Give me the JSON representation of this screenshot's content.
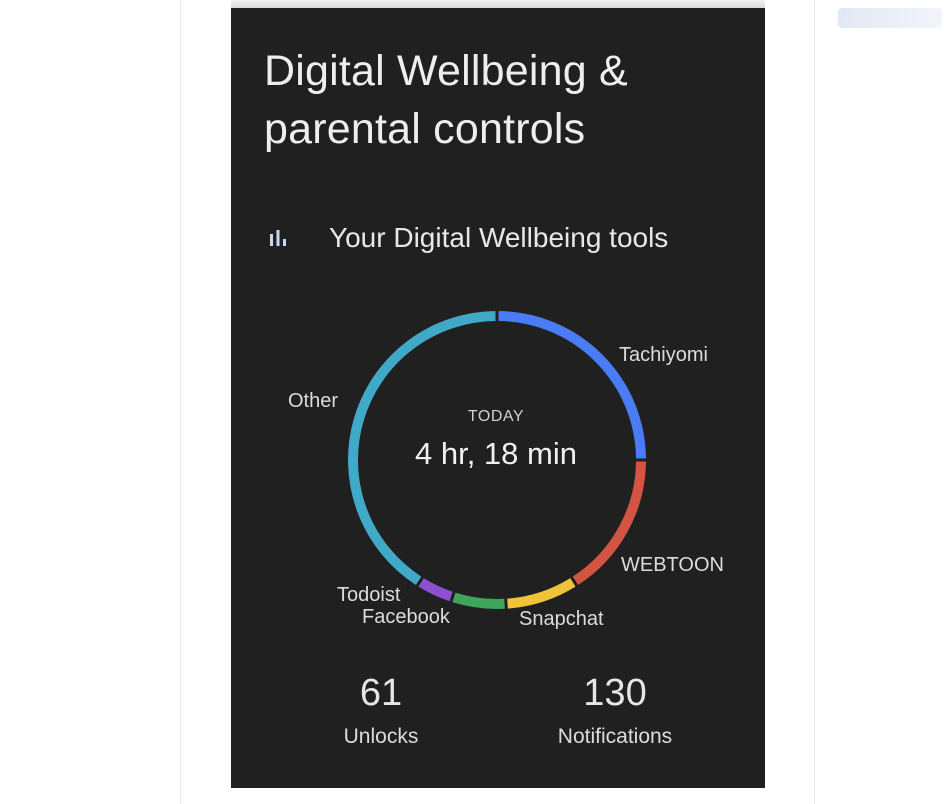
{
  "screen": {
    "title_line1": "Digital Wellbeing &",
    "title_line2": "parental controls",
    "tools_label": "Your Digital Wellbeing tools"
  },
  "usage": {
    "period": "TODAY",
    "total": "4 hr, 18 min"
  },
  "chart_data": {
    "type": "pie",
    "segments": [
      {
        "label": "Tachiyomi",
        "share": 0.25,
        "color": "#4a7cf6"
      },
      {
        "label": "WEBTOON",
        "share": 0.16,
        "color": "#d45443"
      },
      {
        "label": "Snapchat",
        "share": 0.08,
        "color": "#f0c33a"
      },
      {
        "label": "Facebook",
        "share": 0.06,
        "color": "#3ea65a"
      },
      {
        "label": "Todoist",
        "share": 0.04,
        "color": "#8e4fd0"
      },
      {
        "label": "Other",
        "share": 0.41,
        "color": "#41a9c8"
      }
    ]
  },
  "stats": {
    "unlocks_value": "61",
    "unlocks_label": "Unlocks",
    "notifications_value": "130",
    "notifications_label": "Notifications"
  },
  "colors": {
    "screen_bg": "#202020",
    "icon_accent": "#c9d8f5"
  }
}
